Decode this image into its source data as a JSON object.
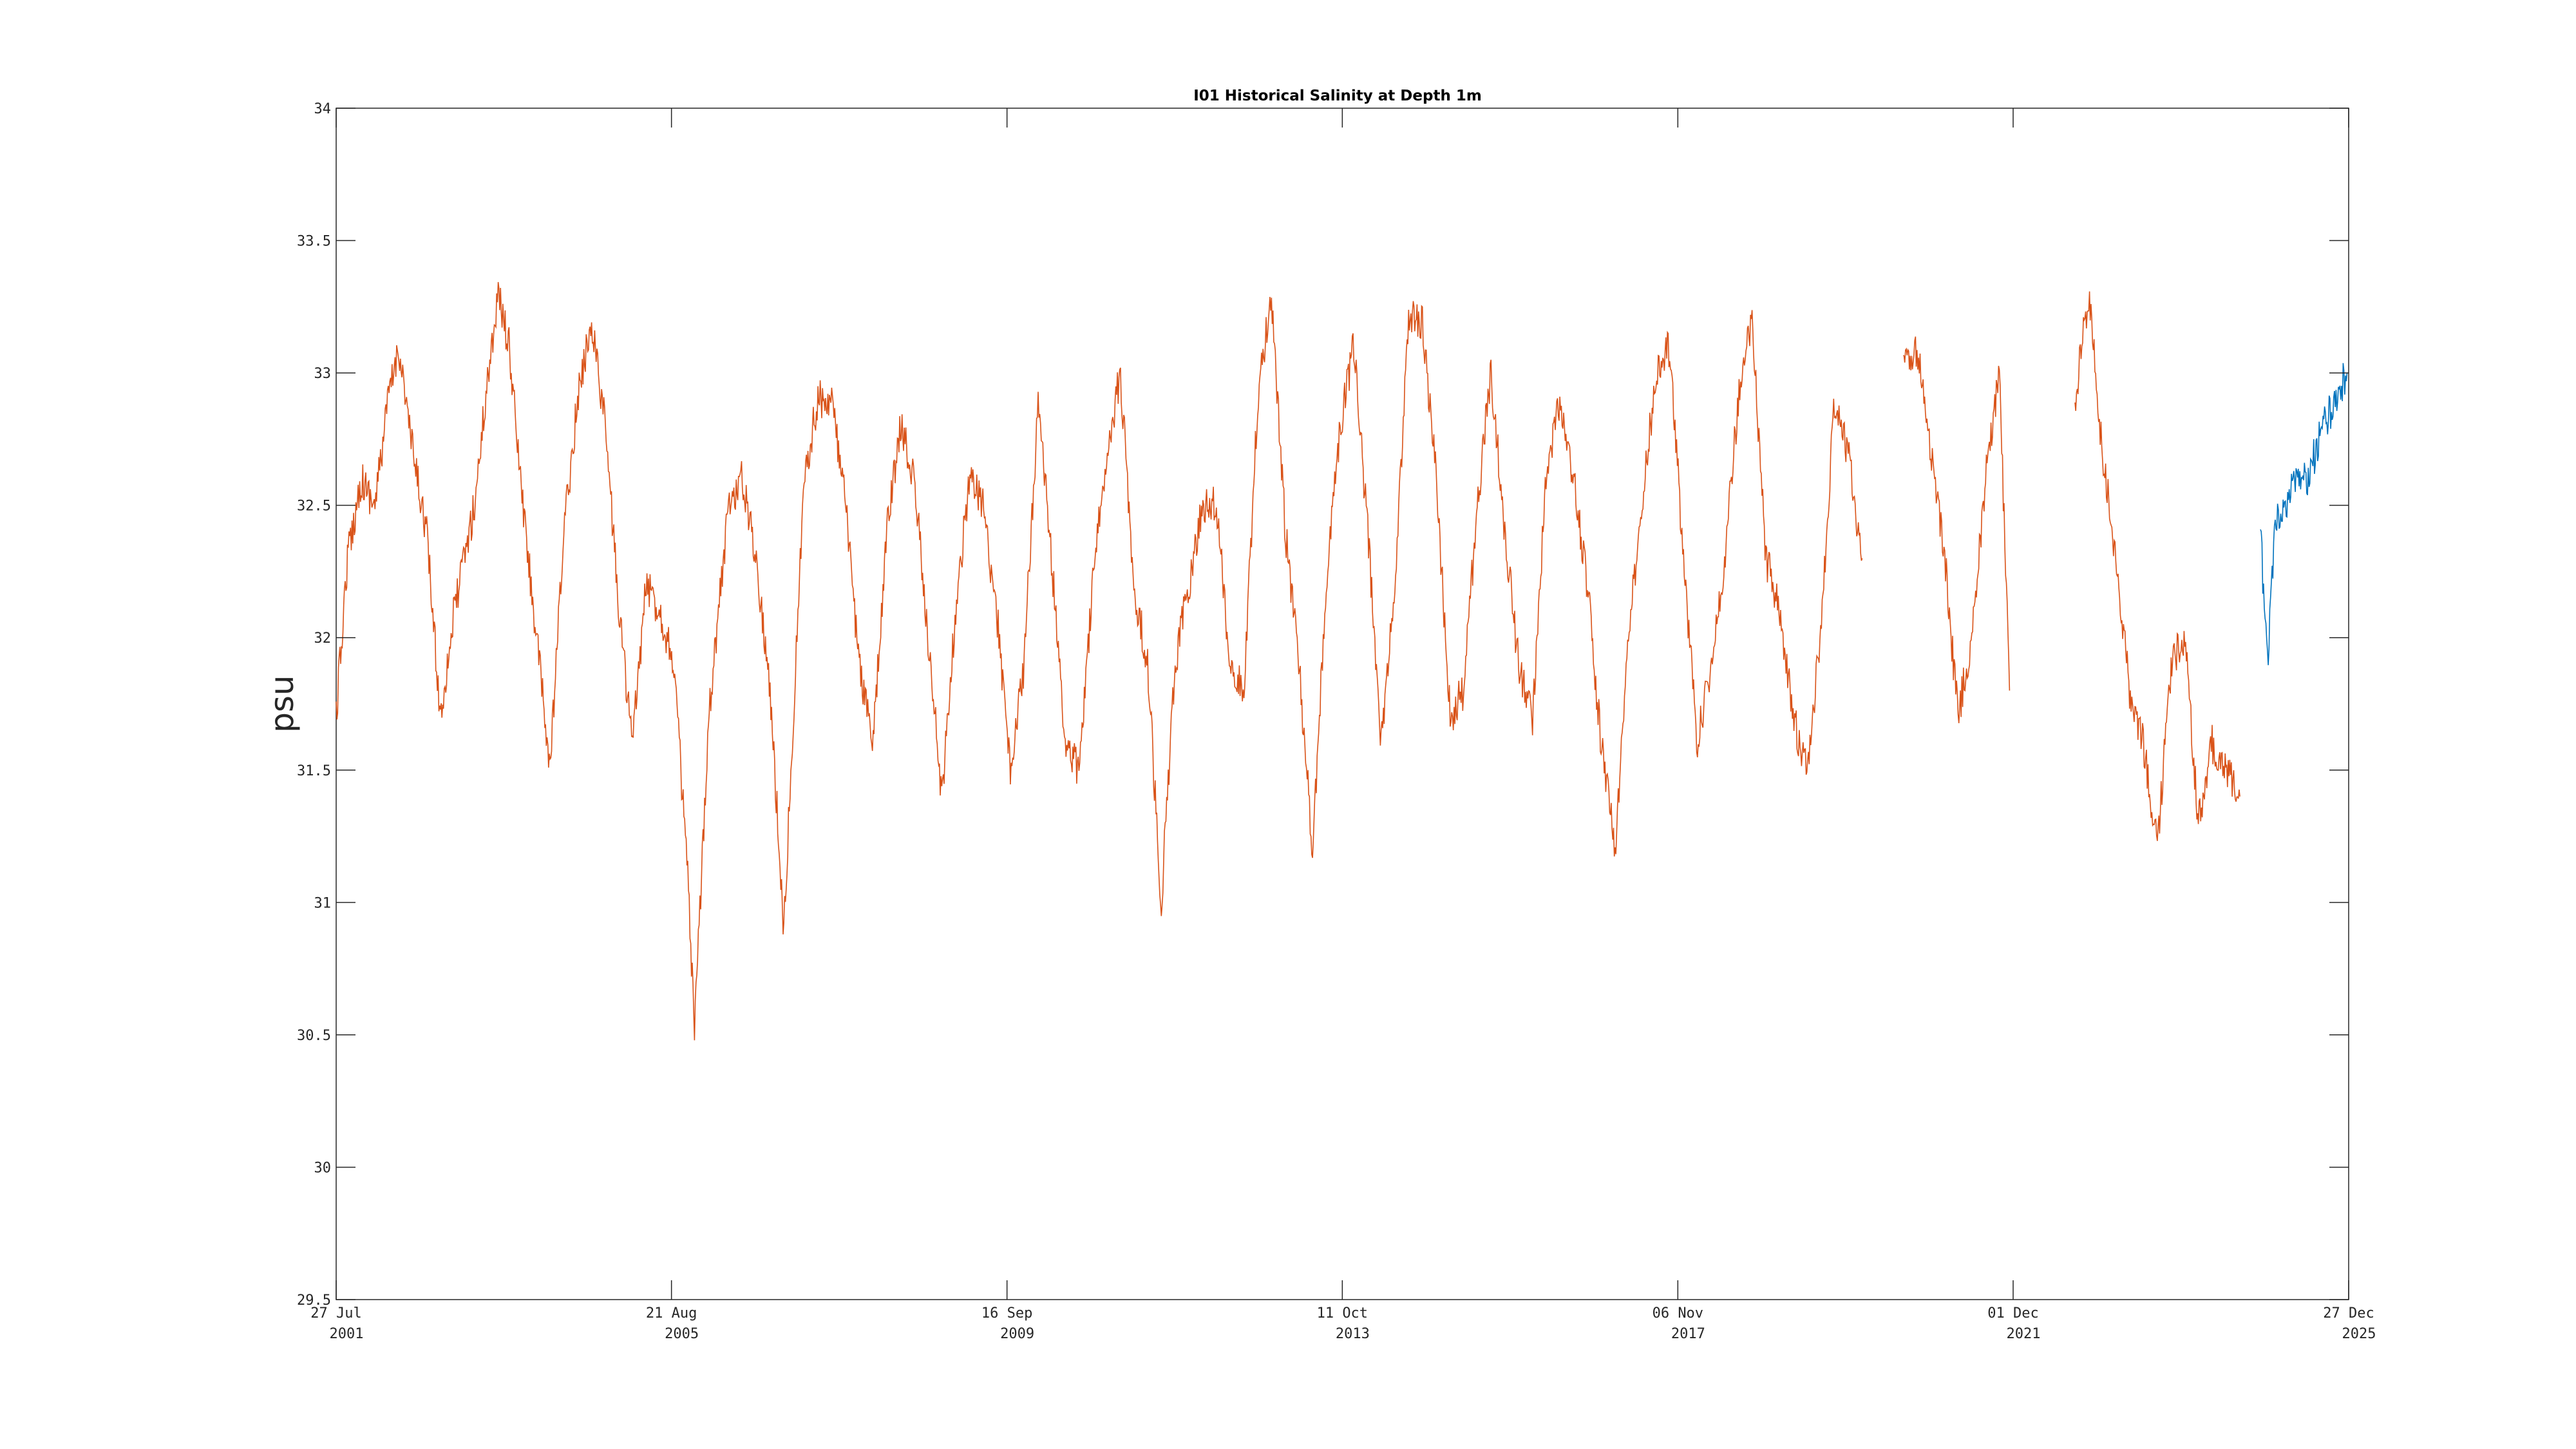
{
  "chart_data": {
    "type": "line",
    "title": "I01 Historical Salinity at Depth 1m",
    "ylabel": "psu",
    "xlabel": "",
    "ylim": [
      29.5,
      34
    ],
    "xlim": [
      "2001-07-27",
      "2025-12-27"
    ],
    "y_ticks": [
      "29.5",
      "30",
      "30.5",
      "31",
      "31.5",
      "32",
      "32.5",
      "33",
      "33.5",
      "34"
    ],
    "x_ticks": [
      {
        "date": "2001-07-27",
        "line1": "27 Jul",
        "line2": "2001"
      },
      {
        "date": "2005-08-21",
        "line1": "21 Aug",
        "line2": "2005"
      },
      {
        "date": "2009-09-16",
        "line1": "16 Sep",
        "line2": "2009"
      },
      {
        "date": "2013-10-11",
        "line1": "11 Oct",
        "line2": "2013"
      },
      {
        "date": "2017-11-06",
        "line1": "06 Nov",
        "line2": "2017"
      },
      {
        "date": "2021-12-01",
        "line1": "01 Dec",
        "line2": "2021"
      },
      {
        "date": "2025-12-27",
        "line1": "27 Dec",
        "line2": "2025"
      }
    ],
    "grid": false,
    "colors": {
      "historical": "#d95319",
      "recent": "#0072bd"
    },
    "series": [
      {
        "color": "#d95319",
        "segments": [
          [
            [
              "2001-07-27",
              31.7
            ],
            [
              "2001-09-15",
              32.3
            ],
            [
              "2001-11-15",
              32.6
            ],
            [
              "2002-01-15",
              32.5
            ],
            [
              "2002-03-15",
              32.9
            ],
            [
              "2002-05-01",
              33.1
            ],
            [
              "2002-07-01",
              32.7
            ],
            [
              "2002-09-01",
              32.4
            ],
            [
              "2002-11-01",
              31.7
            ],
            [
              "2003-01-01",
              32.1
            ],
            [
              "2003-04-01",
              32.5
            ],
            [
              "2003-06-01",
              33.0
            ],
            [
              "2003-07-15",
              33.3
            ],
            [
              "2003-09-01",
              33.1
            ],
            [
              "2003-11-01",
              32.5
            ],
            [
              "2004-01-01",
              32.0
            ],
            [
              "2004-03-01",
              31.5
            ],
            [
              "2004-05-01",
              32.4
            ],
            [
              "2004-07-01",
              32.9
            ],
            [
              "2004-09-01",
              33.2
            ],
            [
              "2004-11-01",
              32.8
            ],
            [
              "2005-01-01",
              32.1
            ],
            [
              "2005-03-01",
              31.6
            ],
            [
              "2005-05-01",
              32.2
            ],
            [
              "2005-07-01",
              32.1
            ],
            [
              "2005-09-01",
              31.9
            ],
            [
              "2005-11-01",
              31.1
            ],
            [
              "2005-12-01",
              30.5
            ],
            [
              "2006-02-01",
              31.7
            ],
            [
              "2006-05-01",
              32.5
            ],
            [
              "2006-07-01",
              32.6
            ],
            [
              "2006-09-01",
              32.3
            ],
            [
              "2006-11-01",
              31.8
            ],
            [
              "2007-01-01",
              30.9
            ],
            [
              "2007-02-01",
              31.5
            ],
            [
              "2007-04-01",
              32.6
            ],
            [
              "2007-06-01",
              32.9
            ],
            [
              "2007-08-01",
              32.9
            ],
            [
              "2007-10-01",
              32.5
            ],
            [
              "2007-12-01",
              31.9
            ],
            [
              "2008-02-01",
              31.6
            ],
            [
              "2008-04-01",
              32.4
            ],
            [
              "2008-06-01",
              32.8
            ],
            [
              "2008-08-01",
              32.6
            ],
            [
              "2008-10-01",
              32.0
            ],
            [
              "2008-12-01",
              31.4
            ],
            [
              "2009-02-01",
              32.1
            ],
            [
              "2009-04-01",
              32.6
            ],
            [
              "2009-06-01",
              32.5
            ],
            [
              "2009-08-01",
              32.1
            ],
            [
              "2009-10-01",
              31.5
            ],
            [
              "2009-12-01",
              31.9
            ],
            [
              "2010-02-01",
              32.9
            ],
            [
              "2010-04-01",
              32.3
            ],
            [
              "2010-06-01",
              31.6
            ],
            [
              "2010-08-01",
              31.5
            ],
            [
              "2010-10-01",
              32.2
            ],
            [
              "2010-12-01",
              32.7
            ],
            [
              "2011-02-01",
              33.0
            ],
            [
              "2011-04-01",
              32.2
            ],
            [
              "2011-06-01",
              31.9
            ],
            [
              "2011-08-01",
              31.0
            ],
            [
              "2011-10-01",
              31.9
            ],
            [
              "2011-12-01",
              32.2
            ],
            [
              "2012-02-01",
              32.5
            ],
            [
              "2012-04-01",
              32.5
            ],
            [
              "2012-06-01",
              31.9
            ],
            [
              "2012-08-01",
              31.8
            ],
            [
              "2012-10-01",
              32.9
            ],
            [
              "2012-12-01",
              33.3
            ],
            [
              "2013-02-01",
              32.4
            ],
            [
              "2013-04-01",
              31.9
            ],
            [
              "2013-06-01",
              31.2
            ],
            [
              "2013-08-01",
              32.2
            ],
            [
              "2013-10-01",
              32.8
            ],
            [
              "2013-12-01",
              33.1
            ],
            [
              "2014-02-01",
              32.4
            ],
            [
              "2014-04-01",
              31.6
            ],
            [
              "2014-06-01",
              32.2
            ],
            [
              "2014-08-01",
              33.2
            ],
            [
              "2014-10-01",
              33.2
            ],
            [
              "2014-12-01",
              32.6
            ],
            [
              "2015-02-01",
              31.7
            ],
            [
              "2015-04-01",
              31.8
            ],
            [
              "2015-06-01",
              32.5
            ],
            [
              "2015-08-01",
              33.0
            ],
            [
              "2015-10-01",
              32.4
            ],
            [
              "2015-12-01",
              31.9
            ],
            [
              "2016-02-01",
              31.7
            ],
            [
              "2016-04-01",
              32.6
            ],
            [
              "2016-06-01",
              32.9
            ],
            [
              "2016-08-01",
              32.6
            ],
            [
              "2016-10-01",
              32.2
            ],
            [
              "2016-12-01",
              31.6
            ],
            [
              "2017-02-01",
              31.2
            ],
            [
              "2017-04-01",
              32.0
            ],
            [
              "2017-06-01",
              32.5
            ],
            [
              "2017-08-01",
              33.0
            ],
            [
              "2017-10-01",
              33.1
            ],
            [
              "2017-12-01",
              32.3
            ],
            [
              "2018-02-01",
              31.6
            ],
            [
              "2018-04-01",
              31.9
            ],
            [
              "2018-06-01",
              32.3
            ],
            [
              "2018-08-01",
              32.9
            ],
            [
              "2018-10-01",
              33.2
            ],
            [
              "2018-12-01",
              32.3
            ],
            [
              "2019-02-01",
              32.1
            ],
            [
              "2019-04-01",
              31.7
            ],
            [
              "2019-06-01",
              31.5
            ],
            [
              "2019-08-01",
              32.0
            ],
            [
              "2019-10-01",
              32.9
            ],
            [
              "2019-12-01",
              32.7
            ],
            [
              "2020-02-01",
              32.3
            ]
          ],
          [
            [
              "2020-08-01",
              33.0
            ],
            [
              "2020-10-01",
              33.1
            ],
            [
              "2020-12-01",
              32.7
            ],
            [
              "2021-02-01",
              32.3
            ],
            [
              "2021-04-01",
              31.7
            ],
            [
              "2021-06-01",
              32.0
            ],
            [
              "2021-08-01",
              32.6
            ],
            [
              "2021-10-01",
              33.0
            ],
            [
              "2021-11-15",
              31.8
            ]
          ],
          [
            [
              "2022-09-01",
              32.9
            ],
            [
              "2022-11-01",
              33.3
            ],
            [
              "2023-01-01",
              32.7
            ],
            [
              "2023-03-01",
              32.3
            ],
            [
              "2023-05-01",
              31.8
            ],
            [
              "2023-07-01",
              31.6
            ],
            [
              "2023-09-01",
              31.2
            ],
            [
              "2023-11-01",
              31.9
            ],
            [
              "2024-01-01",
              32.0
            ],
            [
              "2024-03-01",
              31.3
            ],
            [
              "2024-05-01",
              31.6
            ],
            [
              "2024-07-01",
              31.5
            ],
            [
              "2024-09-01",
              31.4
            ]
          ]
        ]
      },
      {
        "color": "#0072bd",
        "segments": [
          [
            [
              "2024-12-01",
              32.4
            ],
            [
              "2025-01-01",
              31.9
            ],
            [
              "2025-02-01",
              32.4
            ],
            [
              "2025-03-15",
              32.5
            ],
            [
              "2025-05-01",
              32.6
            ],
            [
              "2025-07-01",
              32.6
            ],
            [
              "2025-09-01",
              32.8
            ],
            [
              "2025-11-01",
              32.9
            ],
            [
              "2025-12-20",
              33.0
            ]
          ]
        ]
      }
    ]
  }
}
